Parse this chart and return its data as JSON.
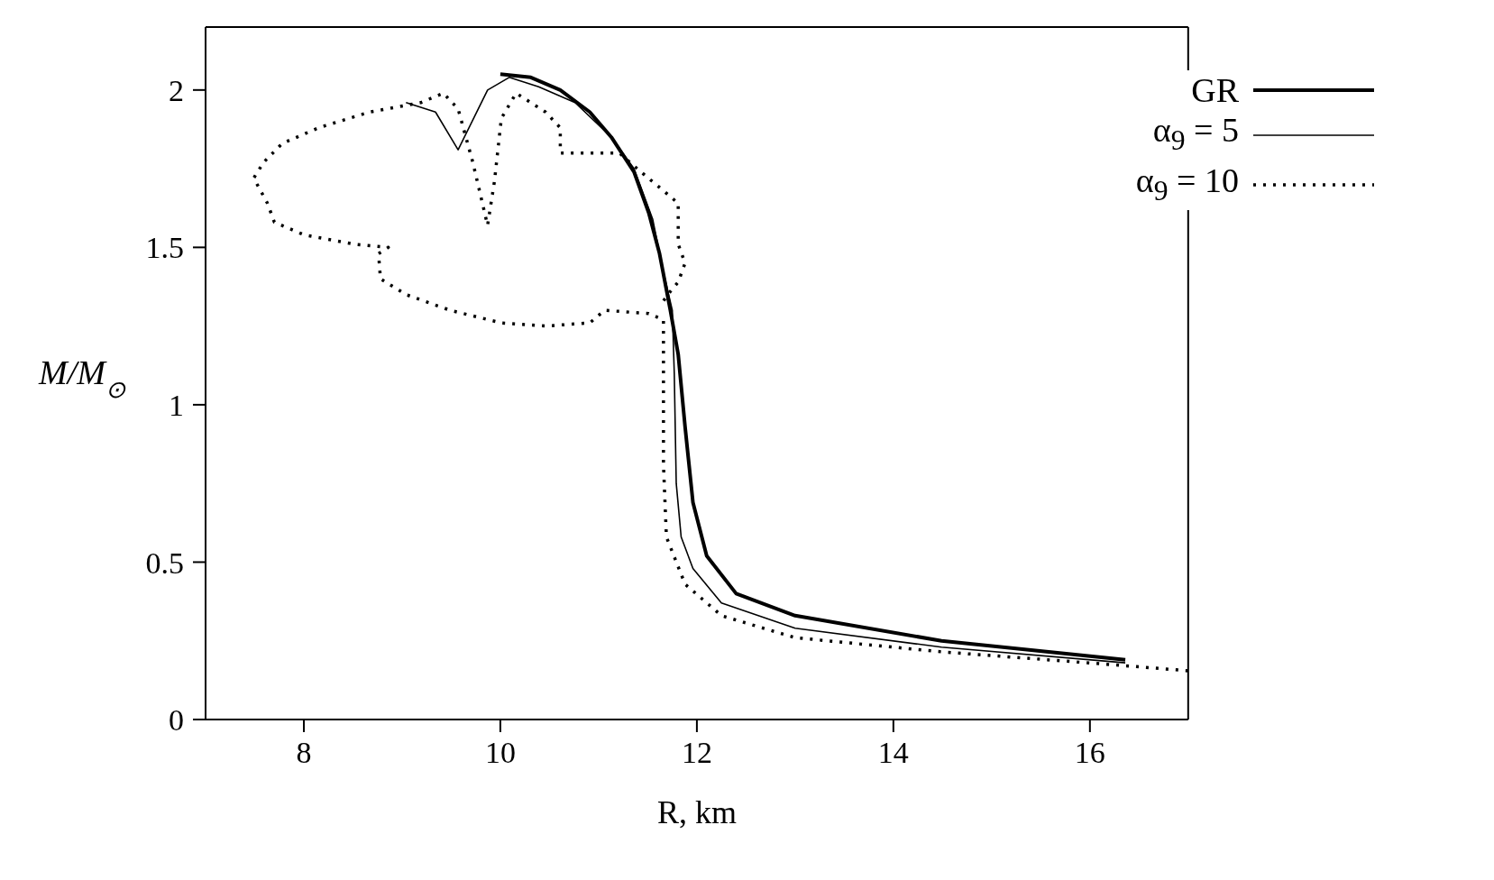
{
  "chart_data": {
    "type": "line",
    "xlabel": "R, km",
    "ylabel": "M/M$_{⊙}$",
    "xlim": [
      7,
      17
    ],
    "xticks": [
      8,
      10,
      12,
      14,
      16
    ],
    "ylim": [
      0,
      2.2
    ],
    "yticks": [
      0,
      0.5,
      1,
      1.5,
      2
    ],
    "legend": "top right",
    "marker": "none",
    "series": [
      {
        "name": "GR",
        "color": "#000000",
        "line_style": "solid",
        "x": [
          16.36,
          14.49,
          13.0,
          12.4,
          12.1,
          11.96,
          11.88,
          11.81,
          11.73,
          11.62,
          11.51,
          11.36,
          11.13,
          10.91,
          10.61,
          10.31,
          10.0
        ],
        "values": [
          0.19,
          0.25,
          0.33,
          0.4,
          0.52,
          0.69,
          0.93,
          1.16,
          1.3,
          1.48,
          1.61,
          1.74,
          1.85,
          1.93,
          2.0,
          2.04,
          2.05
        ]
      },
      {
        "name": "α$_{9}$ = 5",
        "color": "#000000",
        "line_style": "solid",
        "x": [
          16.36,
          14.49,
          13.0,
          12.25,
          11.96,
          11.84,
          11.79,
          11.77,
          11.75,
          11.66,
          11.55,
          11.36,
          11.13,
          10.76,
          10.39,
          10.09,
          9.87,
          9.57,
          9.34,
          9.04
        ],
        "values": [
          0.18,
          0.23,
          0.29,
          0.37,
          0.48,
          0.58,
          0.75,
          1.1,
          1.3,
          1.42,
          1.59,
          1.75,
          1.85,
          1.96,
          2.01,
          2.04,
          2.0,
          1.81,
          1.93,
          1.96
        ]
      },
      {
        "name": "α$_{9}$ = 10",
        "color": "#000000",
        "line_style": "dotted",
        "x": [
          17.0,
          15.99,
          14.49,
          13.0,
          12.25,
          11.88,
          11.69,
          11.66,
          11.66,
          11.66,
          11.51,
          11.06,
          10.91,
          10.46,
          10.01,
          9.49,
          9.04,
          8.78,
          8.76,
          8.86,
          8.52,
          8.0,
          7.7,
          7.63,
          7.49,
          7.59,
          7.78,
          8.15,
          8.67,
          9.19,
          9.42,
          9.57,
          9.72,
          9.87,
          9.94,
          10.01,
          10.16,
          10.46,
          10.61,
          10.61,
          10.76,
          11.21,
          11.43,
          11.66,
          11.81,
          11.81,
          11.88,
          11.81,
          11.73,
          11.66
        ],
        "values": [
          0.155,
          0.18,
          0.215,
          0.26,
          0.33,
          0.43,
          0.58,
          0.81,
          1.1,
          1.27,
          1.29,
          1.3,
          1.26,
          1.25,
          1.26,
          1.3,
          1.35,
          1.4,
          1.48,
          1.5,
          1.51,
          1.54,
          1.58,
          1.64,
          1.72,
          1.77,
          1.83,
          1.88,
          1.93,
          1.96,
          1.99,
          1.94,
          1.77,
          1.57,
          1.71,
          1.91,
          1.99,
          1.93,
          1.88,
          1.8,
          1.8,
          1.8,
          1.74,
          1.68,
          1.64,
          1.51,
          1.45,
          1.39,
          1.36,
          1.33
        ]
      }
    ]
  }
}
